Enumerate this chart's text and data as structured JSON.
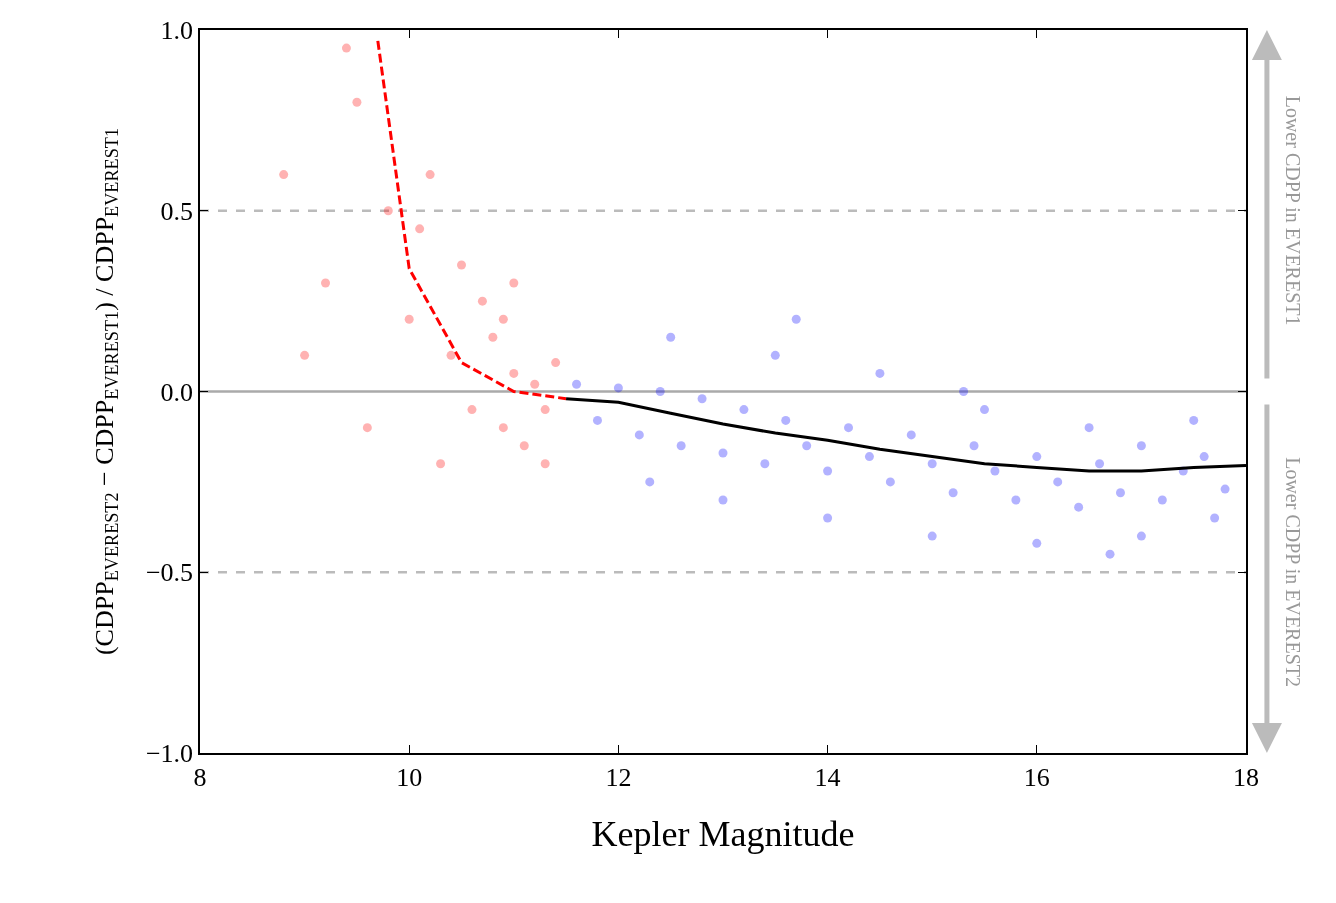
{
  "chart_data": {
    "type": "scatter",
    "xlabel": "Kepler Magnitude",
    "ylabel": "(CDPP$_{EVEREST2}$ − CDPP$_{EVEREST1}$) / CDPP$_{EVEREST1}$",
    "xlim": [
      8,
      18
    ],
    "xticks": [
      8,
      10,
      12,
      14,
      16,
      18
    ],
    "ylim": [
      -1.0,
      1.0
    ],
    "yticks": [
      {
        "value": -1.0,
        "label": "−1.0"
      },
      {
        "value": -0.5,
        "label": "−0.5"
      },
      {
        "value": 0.0,
        "label": "0.0"
      },
      {
        "value": 0.5,
        "label": "0.5"
      },
      {
        "value": 1.0,
        "label": "1.0"
      }
    ],
    "grid": false,
    "series": [
      {
        "type": "scatter",
        "marker": "circle",
        "color": "#ff0000",
        "x": [
          8.8,
          9.2,
          9.5,
          9.8,
          10.0,
          10.2,
          10.4,
          10.5,
          10.6,
          10.8,
          10.9,
          11.0,
          11.1,
          11.2,
          11.3,
          11.4,
          9.0,
          9.6,
          10.3,
          10.7,
          11.0,
          9.4,
          10.1,
          10.9,
          11.3
        ],
        "values": [
          0.6,
          0.3,
          0.8,
          0.5,
          0.2,
          0.6,
          0.1,
          0.35,
          -0.05,
          0.15,
          -0.1,
          0.05,
          -0.15,
          0.02,
          -0.05,
          0.08,
          0.1,
          -0.1,
          -0.2,
          0.25,
          0.3,
          0.95,
          0.45,
          0.2,
          -0.2
        ]
      },
      {
        "type": "scatter",
        "marker": "circle",
        "color": "#0000ff",
        "x": [
          11.6,
          11.8,
          12.0,
          12.2,
          12.4,
          12.6,
          12.8,
          13.0,
          13.2,
          13.4,
          13.6,
          13.8,
          14.0,
          14.2,
          14.4,
          14.6,
          14.8,
          15.0,
          15.2,
          15.4,
          15.6,
          15.8,
          16.0,
          16.2,
          16.4,
          16.6,
          16.8,
          17.0,
          17.2,
          17.4,
          17.6,
          17.8,
          12.5,
          13.5,
          14.5,
          15.5,
          16.5,
          17.5,
          13.0,
          14.0,
          15.0,
          16.0,
          17.0,
          12.3,
          13.7,
          15.3,
          16.7,
          17.7
        ],
        "values": [
          0.02,
          -0.08,
          0.01,
          -0.12,
          0.0,
          -0.15,
          -0.02,
          -0.17,
          -0.05,
          -0.2,
          -0.08,
          -0.15,
          -0.22,
          -0.1,
          -0.18,
          -0.25,
          -0.12,
          -0.2,
          -0.28,
          -0.15,
          -0.22,
          -0.3,
          -0.18,
          -0.25,
          -0.32,
          -0.2,
          -0.28,
          -0.15,
          -0.3,
          -0.22,
          -0.18,
          -0.27,
          0.15,
          0.1,
          0.05,
          -0.05,
          -0.1,
          -0.08,
          -0.3,
          -0.35,
          -0.4,
          -0.42,
          -0.4,
          -0.25,
          0.2,
          0.0,
          -0.45,
          -0.35
        ]
      },
      {
        "type": "line",
        "line_style": "dashed",
        "color": "#ff0000",
        "x": [
          9.7,
          10.0,
          10.5,
          11.0,
          11.5
        ],
        "values": [
          0.97,
          0.34,
          0.08,
          0.0,
          -0.02
        ]
      },
      {
        "type": "line",
        "line_style": "solid",
        "color": "#000000",
        "x": [
          11.5,
          12.0,
          12.5,
          13.0,
          13.5,
          14.0,
          14.5,
          15.0,
          15.5,
          16.0,
          16.5,
          17.0,
          17.5,
          18.0
        ],
        "values": [
          -0.02,
          -0.03,
          -0.06,
          -0.09,
          -0.115,
          -0.135,
          -0.16,
          -0.18,
          -0.2,
          -0.21,
          -0.22,
          -0.22,
          -0.21,
          -0.205
        ]
      }
    ],
    "ref_lines": [
      {
        "axis": "y",
        "value": 0.5,
        "color": "#bbbbbb",
        "line_style": "dashed"
      },
      {
        "axis": "y",
        "value": 0.0,
        "color": "#aaaaaa",
        "line_style": "solid"
      },
      {
        "axis": "y",
        "value": -0.5,
        "color": "#bbbbbb",
        "line_style": "dashed"
      }
    ],
    "annotations": [
      "Lower CDPP in EVEREST1",
      "Lower CDPP in EVEREST2"
    ]
  }
}
